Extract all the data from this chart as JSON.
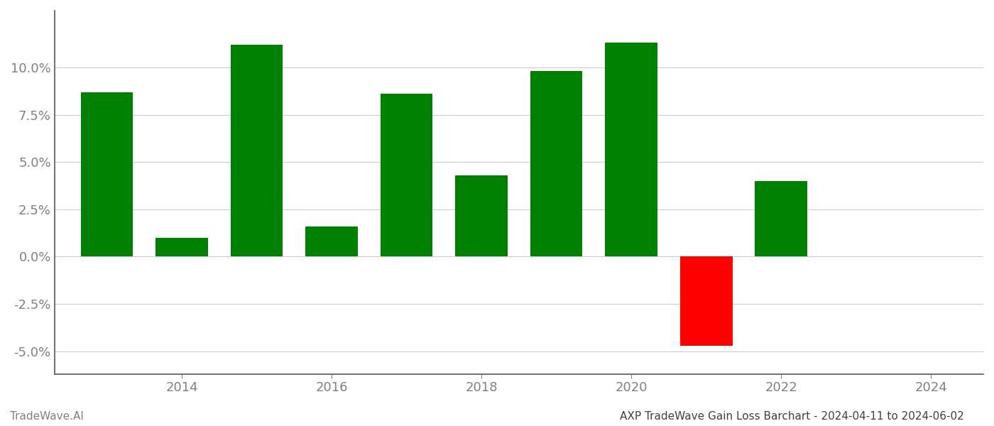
{
  "years": [
    2013,
    2014,
    2015,
    2016,
    2017,
    2018,
    2019,
    2020,
    2021,
    2022
  ],
  "values": [
    0.087,
    0.01,
    0.112,
    0.016,
    0.086,
    0.043,
    0.098,
    0.113,
    -0.047,
    0.04
  ],
  "bar_colors": [
    "#008000",
    "#008000",
    "#008000",
    "#008000",
    "#008000",
    "#008000",
    "#008000",
    "#008000",
    "#ff0000",
    "#008000"
  ],
  "title": "AXP TradeWave Gain Loss Barchart - 2024-04-11 to 2024-06-02",
  "footer_left": "TradeWave.AI",
  "ylim": [
    -0.062,
    0.13
  ],
  "yticks": [
    -0.05,
    -0.025,
    0.0,
    0.025,
    0.05,
    0.075,
    0.1
  ],
  "xticks": [
    2014,
    2016,
    2018,
    2020,
    2022,
    2024
  ],
  "xlim": [
    2012.3,
    2024.7
  ],
  "bar_width": 0.7,
  "background_color": "#ffffff",
  "grid_color": "#cccccc",
  "axis_color": "#555555",
  "tick_label_color": "#808080",
  "title_color": "#404040",
  "footer_color": "#808080",
  "tick_fontsize": 13,
  "footer_fontsize": 11,
  "title_fontsize": 11
}
